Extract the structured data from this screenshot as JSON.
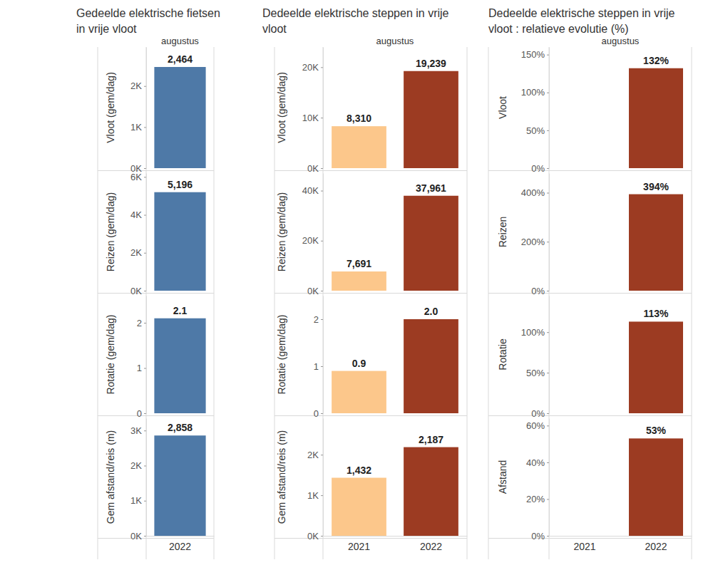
{
  "chart_data": [
    {
      "type": "bar",
      "title": "Gedeelde elektrische fietsen in vrije vloot",
      "subtitle": "augustus",
      "ylabel": "Vloot (gem/dag)",
      "categories": [
        "2022"
      ],
      "values": [
        2464
      ],
      "value_labels": [
        "2,464"
      ],
      "color": "#4e79a7",
      "ylim": [
        0,
        2950
      ],
      "yticks": [
        {
          "value": 0,
          "label": "0K"
        },
        {
          "value": 1000,
          "label": "1K"
        },
        {
          "value": 2000,
          "label": "2K"
        }
      ],
      "data_labels": true,
      "tick_labels": "y"
    },
    {
      "type": "bar",
      "ylabel": "Reizen (gem/dag)",
      "categories": [
        "2022"
      ],
      "values": [
        5196
      ],
      "value_labels": [
        "5,196"
      ],
      "color": "#4e79a7",
      "ylim": [
        0,
        6200
      ],
      "yticks": [
        {
          "value": 0,
          "label": "0K"
        },
        {
          "value": 2000,
          "label": "2K"
        },
        {
          "value": 4000,
          "label": "4K"
        },
        {
          "value": 6000,
          "label": "6K"
        }
      ],
      "data_labels": true,
      "tick_labels": "y"
    },
    {
      "type": "bar",
      "ylabel": "Rotatie (gem/dag)",
      "categories": [
        "2022"
      ],
      "values": [
        2.1
      ],
      "color": "#4e79a7",
      "ylim": [
        0,
        2.6
      ],
      "yticks": [
        0,
        1,
        2
      ],
      "data_labels": true,
      "tick_labels": "y"
    },
    {
      "type": "bar",
      "ylabel": "Gem afstand/reis (m)",
      "categories": [
        "2022"
      ],
      "values": [
        2858
      ],
      "value_labels": [
        "2,858"
      ],
      "color": "#4e79a7",
      "ylim": [
        0,
        3350
      ],
      "yticks": [
        {
          "value": 0,
          "label": "0K"
        },
        {
          "value": 1000,
          "label": "1K"
        },
        {
          "value": 2000,
          "label": "2K"
        },
        {
          "value": 3000,
          "label": "3K"
        }
      ],
      "data_labels": true
    },
    {
      "type": "bar",
      "title": "Dedeelde elektrische steppen in vrije vloot",
      "subtitle": "augustus",
      "ylabel": "Vloot (gem/dag)",
      "categories": [
        "2021",
        "2022"
      ],
      "values": [
        8310,
        19239
      ],
      "value_labels": [
        "8,310",
        "19,239"
      ],
      "colors": [
        "#fcc78b",
        "#9c3b22"
      ],
      "ylim": [
        0,
        24000
      ],
      "yticks": [
        {
          "value": 0,
          "label": "0K"
        },
        {
          "value": 10000,
          "label": "10K"
        },
        {
          "value": 20000,
          "label": "20K"
        }
      ],
      "data_labels": true,
      "tick_labels": "y"
    },
    {
      "type": "bar",
      "ylabel": "Reizen (gem/dag)",
      "categories": [
        "2021",
        "2022"
      ],
      "values": [
        7691,
        37961
      ],
      "value_labels": [
        "7,691",
        "37,961"
      ],
      "colors": [
        "#fcc78b",
        "#9c3b22"
      ],
      "ylim": [
        0,
        47000
      ],
      "yticks": [
        {
          "value": 0,
          "label": "0K"
        },
        {
          "value": 20000,
          "label": "20K"
        },
        {
          "value": 40000,
          "label": "40K"
        }
      ],
      "data_labels": true,
      "tick_labels": "y"
    },
    {
      "type": "bar",
      "ylabel": "Rotatie (gem/dag)",
      "categories": [
        "2021",
        "2022"
      ],
      "values": [
        0.9,
        2.0
      ],
      "value_labels": [
        "0.9",
        "2.0"
      ],
      "colors": [
        "#fcc78b",
        "#9c3b22"
      ],
      "ylim": [
        0,
        2.5
      ],
      "yticks": [
        0,
        1,
        2
      ],
      "data_labels": true,
      "tick_labels": "y"
    },
    {
      "type": "bar",
      "ylabel": "Gem afstand/reis (m)",
      "categories": [
        "2021",
        "2022"
      ],
      "values": [
        1432,
        2187
      ],
      "value_labels": [
        "1,432",
        "2,187"
      ],
      "colors": [
        "#fcc78b",
        "#9c3b22"
      ],
      "ylim": [
        0,
        2900
      ],
      "yticks": [
        {
          "value": 0,
          "label": "0K"
        },
        {
          "value": 1000,
          "label": "1K"
        },
        {
          "value": 2000,
          "label": "2K"
        }
      ],
      "data_labels": true
    },
    {
      "type": "bar",
      "title": "Dedeelde elektrische steppen in vrije vloot : relatieve evolutie (%)",
      "subtitle": "augustus",
      "ylabel": "Vloot",
      "categories": [
        "2021",
        "2022"
      ],
      "values": [
        null,
        132
      ],
      "value_labels": [
        null,
        "132%"
      ],
      "color": "#9c3b22",
      "ylim": [
        0,
        160
      ],
      "yticks": [
        {
          "value": 0,
          "label": "0%"
        },
        {
          "value": 50,
          "label": "50%"
        },
        {
          "value": 100,
          "label": "100%"
        },
        {
          "value": 150,
          "label": "150%"
        }
      ],
      "data_labels": true,
      "tick_labels": "y"
    },
    {
      "type": "bar",
      "ylabel": "Reizen",
      "categories": [
        "2021",
        "2022"
      ],
      "values": [
        null,
        394
      ],
      "value_labels": [
        null,
        "394%"
      ],
      "color": "#9c3b22",
      "ylim": [
        0,
        480
      ],
      "yticks": [
        {
          "value": 0,
          "label": "0%"
        },
        {
          "value": 200,
          "label": "200%"
        },
        {
          "value": 400,
          "label": "400%"
        }
      ],
      "data_labels": true,
      "tick_labels": "y"
    },
    {
      "type": "bar",
      "ylabel": "Rotatie",
      "categories": [
        "2021",
        "2022"
      ],
      "values": [
        null,
        113
      ],
      "value_labels": [
        null,
        "113%"
      ],
      "color": "#9c3b22",
      "ylim": [
        0,
        145
      ],
      "yticks": [
        {
          "value": 0,
          "label": "0%"
        },
        {
          "value": 50,
          "label": "50%"
        },
        {
          "value": 100,
          "label": "100%"
        }
      ],
      "data_labels": true,
      "tick_labels": "y"
    },
    {
      "type": "bar",
      "ylabel": "Afstand",
      "categories": [
        "2021",
        "2022"
      ],
      "values": [
        null,
        53
      ],
      "value_labels": [
        null,
        "53%"
      ],
      "color": "#9c3b22",
      "ylim": [
        0,
        64
      ],
      "yticks": [
        {
          "value": 0,
          "label": "0%"
        },
        {
          "value": 20,
          "label": "20%"
        },
        {
          "value": 40,
          "label": "40%"
        },
        {
          "value": 60,
          "label": "60%"
        }
      ],
      "data_labels": true
    }
  ]
}
